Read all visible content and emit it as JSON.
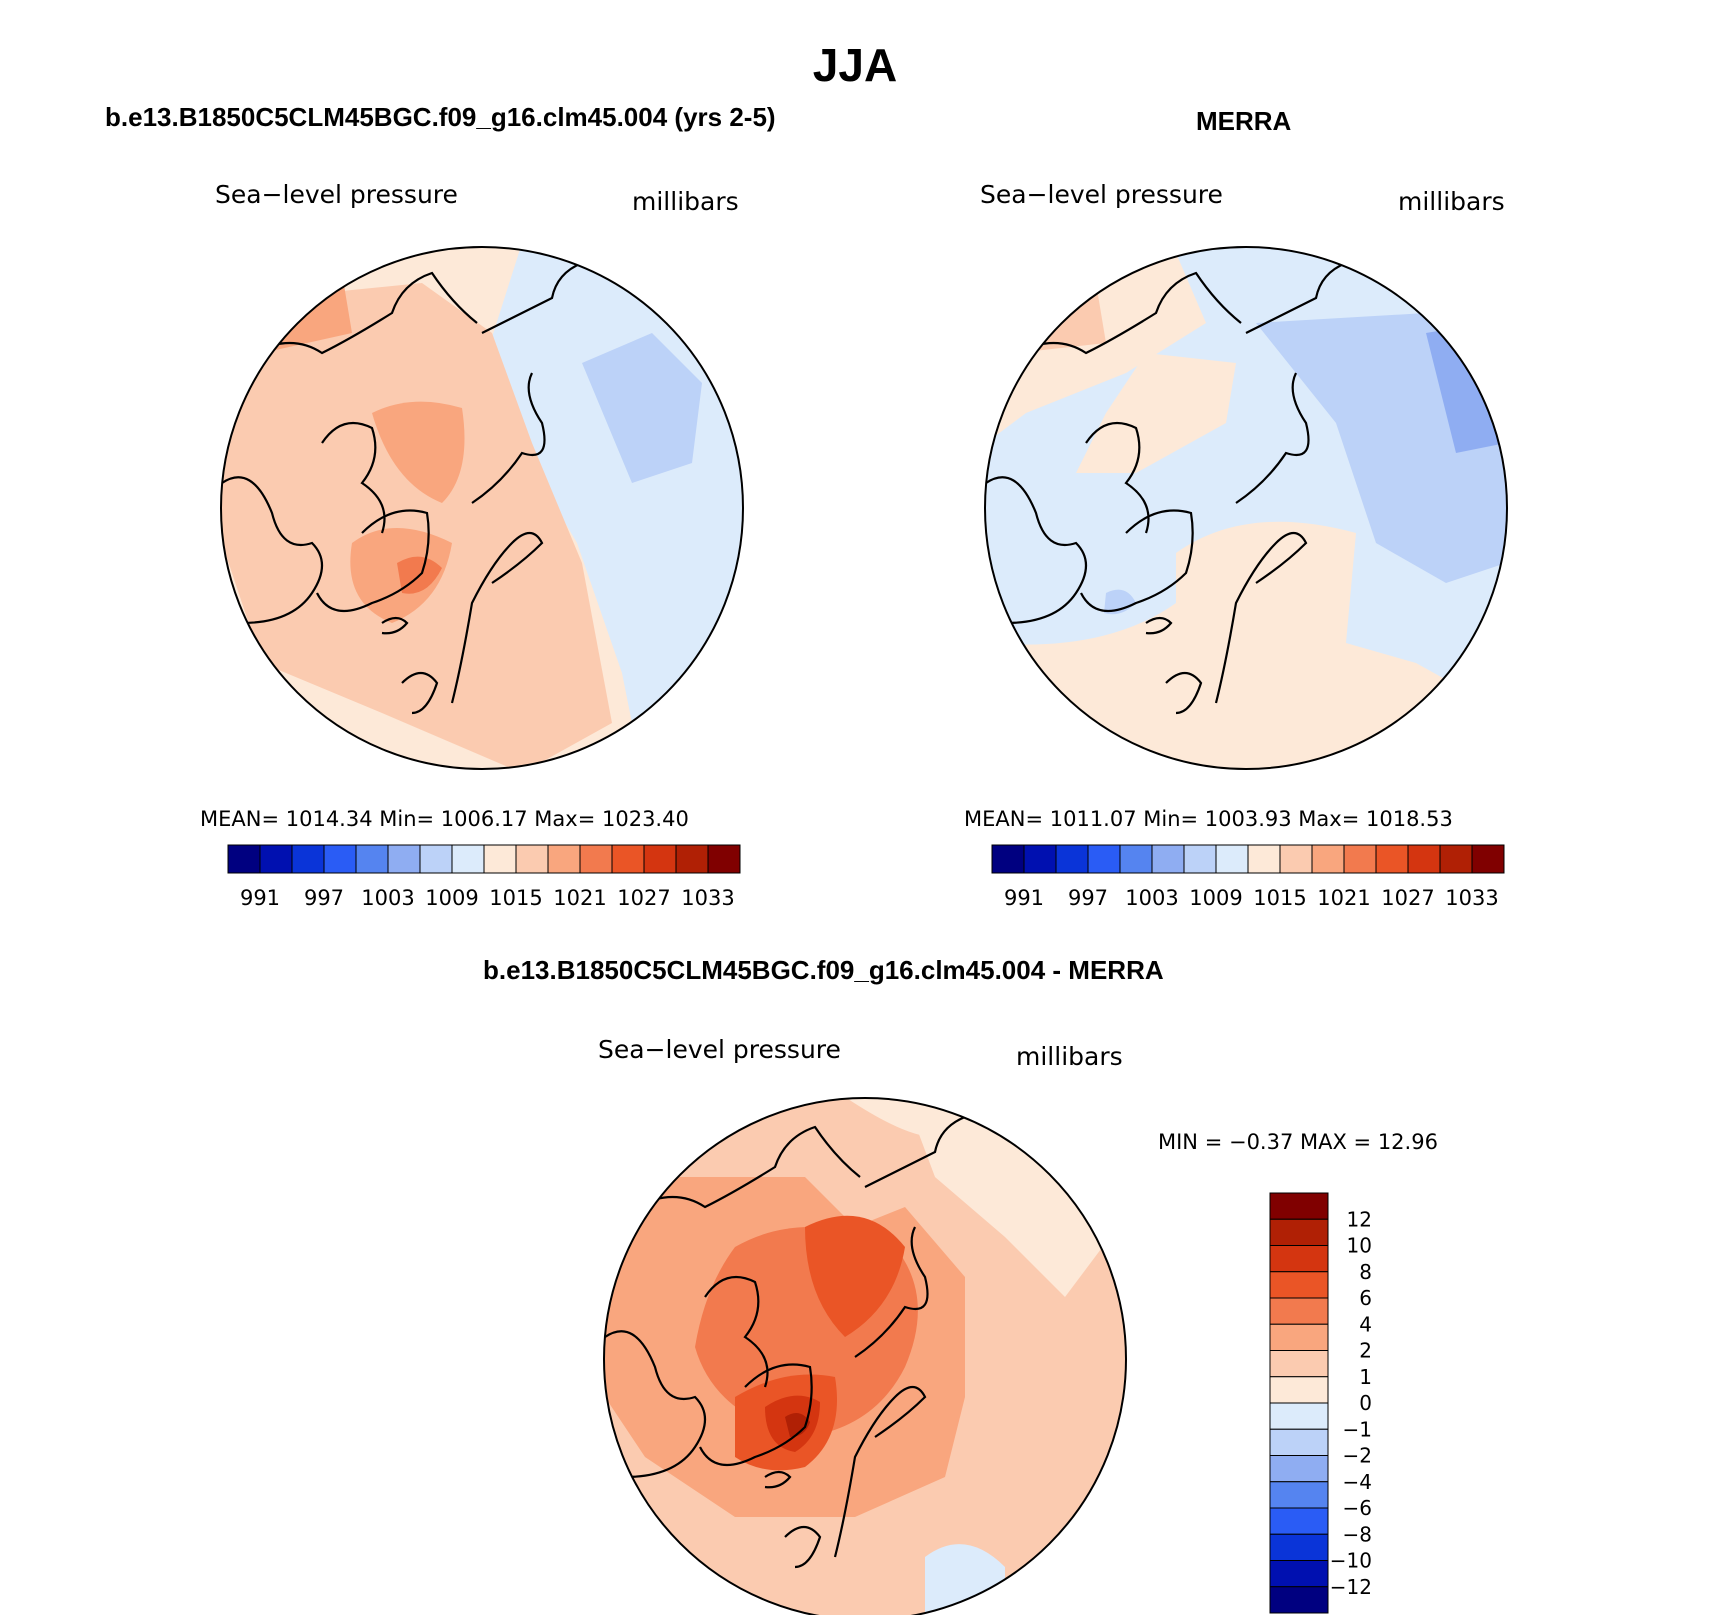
{
  "main_title": "JJA",
  "panels": [
    {
      "id": "model",
      "title": "b.e13.B1850C5CLM45BGC.f09_g16.clm45.004 (yrs 2-5)",
      "variable": "Sea−level pressure",
      "units": "millibars",
      "stats": "MEAN=  1014.34    Min=  1006.17    Max=  1023.40"
    },
    {
      "id": "obs",
      "title": "MERRA",
      "variable": "Sea−level pressure",
      "units": "millibars",
      "stats": "MEAN=  1011.07    Min=  1003.93    Max=  1018.53"
    },
    {
      "id": "diff",
      "title": "b.e13.B1850C5CLM45BGC.f09_g16.clm45.004 - MERRA",
      "variable": "Sea−level pressure",
      "units": "millibars",
      "stats": "MIN =   −0.37  MAX =    12.96"
    }
  ],
  "abs_colorbar": {
    "colors": [
      "#000080",
      "#0010b0",
      "#0a34d8",
      "#2a5cf5",
      "#5584f0",
      "#8fadf2",
      "#bcd2f8",
      "#dcebfb",
      "#fde9d8",
      "#fbcbb0",
      "#f9a67e",
      "#f27a4e",
      "#ea5526",
      "#d43510",
      "#b02005",
      "#800000"
    ],
    "labels": [
      "991",
      "997",
      "1003",
      "1009",
      "1015",
      "1021",
      "1027",
      "1033"
    ]
  },
  "diff_colorbar": {
    "colors": [
      "#000080",
      "#0010b0",
      "#0a34d8",
      "#2a5cf5",
      "#5584f0",
      "#8fadf2",
      "#bcd2f8",
      "#dcebfb",
      "#fde9d8",
      "#fbcbb0",
      "#f9a67e",
      "#f27a4e",
      "#ea5526",
      "#d43510",
      "#b02005",
      "#800000"
    ],
    "labels": [
      "12",
      "10",
      "8",
      "6",
      "4",
      "2",
      "1",
      "0",
      "−1",
      "−2",
      "−4",
      "−6",
      "−8",
      "−10",
      "−12"
    ]
  }
}
